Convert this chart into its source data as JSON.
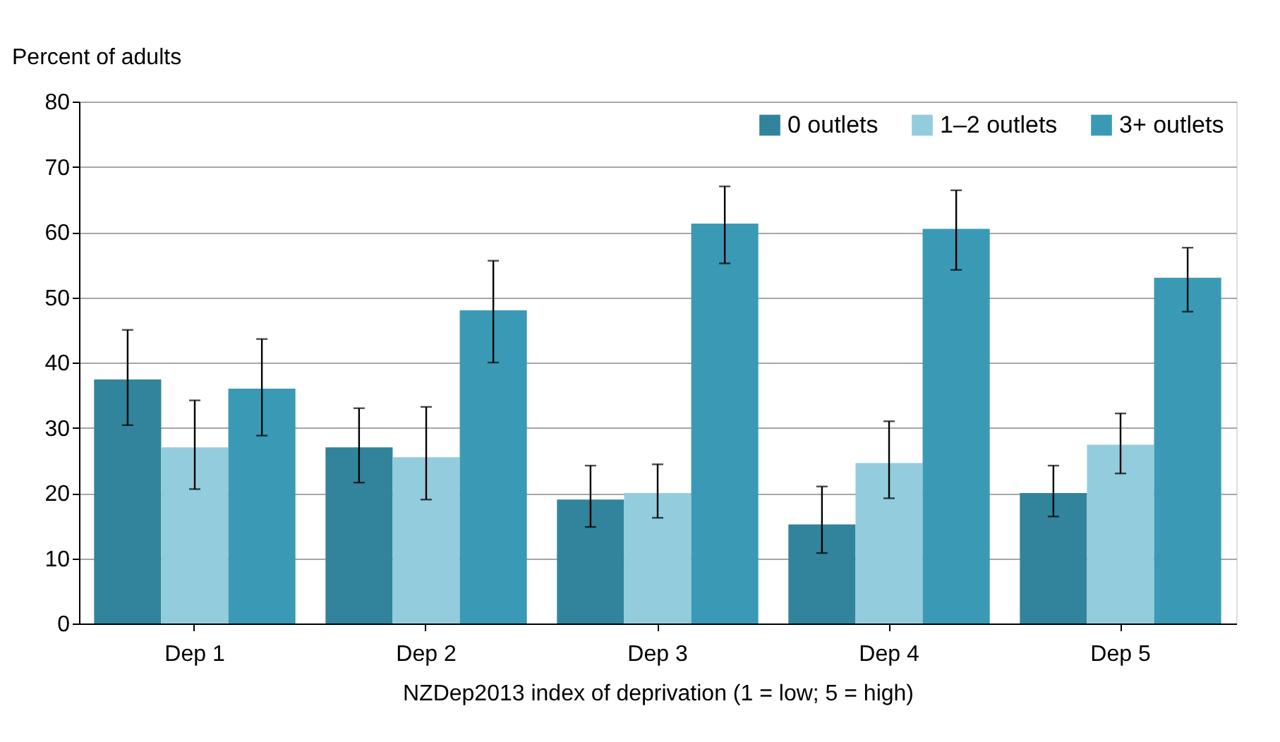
{
  "chart_data": {
    "type": "bar",
    "ylabel": "Percent of adults",
    "xlabel": "NZDep2013 index of deprivation (1 = low; 5 = high)",
    "categories": [
      "Dep 1",
      "Dep 2",
      "Dep 3",
      "Dep 4",
      "Dep 5"
    ],
    "series": [
      {
        "name": "0 outlets",
        "color": "#31849b",
        "values": [
          37.4,
          27,
          19,
          15.2,
          20
        ],
        "errors": [
          [
            30.4,
            45
          ],
          [
            21.6,
            33
          ],
          [
            14.8,
            24.2
          ],
          [
            10.8,
            21
          ],
          [
            16.4,
            24.2
          ]
        ]
      },
      {
        "name": "1–2 outlets",
        "color": "#93cddd",
        "values": [
          27,
          25.5,
          20,
          24.6,
          27.4
        ],
        "errors": [
          [
            20.6,
            34.2
          ],
          [
            19,
            33.2
          ],
          [
            16.2,
            24.4
          ],
          [
            19.2,
            31
          ],
          [
            23,
            32.2
          ]
        ]
      },
      {
        "name": "3+ outlets",
        "color": "#3a9ab5",
        "values": [
          36,
          48,
          61.3,
          60.5,
          53
        ],
        "errors": [
          [
            28.8,
            43.6
          ],
          [
            40,
            55.6
          ],
          [
            55.2,
            67
          ],
          [
            54.2,
            66.4
          ],
          [
            47.8,
            57.6
          ]
        ]
      }
    ],
    "ylim": [
      0,
      80
    ],
    "yticks": [
      0,
      10,
      20,
      30,
      40,
      50,
      60,
      70,
      80
    ],
    "grid": "y",
    "legend": "top right"
  }
}
